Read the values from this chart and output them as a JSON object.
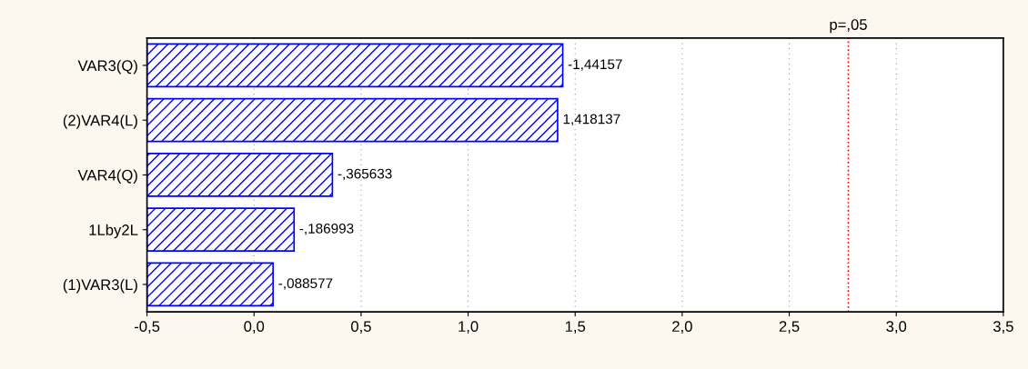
{
  "chart_data": {
    "type": "bar",
    "orientation": "horizontal",
    "categories": [
      "VAR3(Q)",
      "(2)VAR4(L)",
      "VAR4(Q)",
      "1Lby2L",
      "(1)VAR3(L)"
    ],
    "base": [
      -0.5,
      -0.5,
      -0.5,
      -0.5,
      -0.5
    ],
    "values": [
      1.942,
      1.918,
      0.866,
      0.687,
      0.589
    ],
    "annotations": [
      {
        "text": "-1,44157",
        "x": 1.442,
        "y": "VAR3(Q)"
      },
      {
        "text": "1,418137",
        "x": 1.418,
        "y": "(2)VAR4(L)"
      },
      {
        "text": "-,365633",
        "x": 0.366,
        "y": "VAR4(Q)"
      },
      {
        "text": "-,186993",
        "x": 0.187,
        "y": "1Lby2L"
      },
      {
        "text": "-,088577",
        "x": 0.089,
        "y": "(1)VAR3(L)"
      }
    ],
    "color": "#0000ff",
    "xlim": [
      -0.5,
      3.5
    ],
    "xticks": [
      {
        "value": -0.5,
        "label": "-0,5"
      },
      {
        "value": 0.0,
        "label": "0,0"
      },
      {
        "value": 0.5,
        "label": "0,5"
      },
      {
        "value": 1.0,
        "label": "1,0"
      },
      {
        "value": 1.5,
        "label": "1,5"
      },
      {
        "value": 2.0,
        "label": "2,0"
      },
      {
        "value": 2.5,
        "label": "2,5"
      },
      {
        "value": 3.0,
        "label": "3,0"
      },
      {
        "value": 3.5,
        "label": "3,5"
      }
    ],
    "grid": "x",
    "ref_lines": [
      {
        "axis": "x",
        "value": 2.776,
        "label": "p=,05",
        "color": "#ff0000",
        "line_style": "dotted"
      }
    ]
  }
}
